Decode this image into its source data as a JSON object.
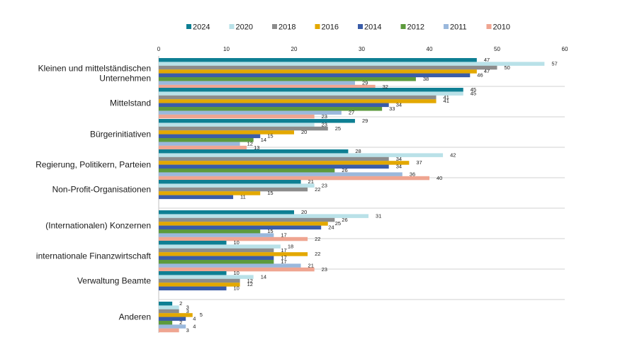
{
  "chart_data": {
    "type": "bar",
    "orientation": "horizontal",
    "title": "",
    "xlabel": "",
    "ylabel": "",
    "xlim": [
      0,
      60
    ],
    "ticks": [
      "0",
      "10",
      "20",
      "30",
      "40",
      "50",
      "60"
    ],
    "legend_position": "top",
    "categories": [
      [
        "Kleinen und mittelständischen",
        "Unternehmen"
      ],
      [
        "Mittelstand"
      ],
      [
        "Bürgerinitiativen"
      ],
      [
        "Regierung, Politikern, Parteien"
      ],
      [
        "Non-Profit-Organisationen"
      ],
      [
        "(Internationalen) Konzernen"
      ],
      [
        "internationale Finanzwirtschaft"
      ],
      [
        "Verwaltung Beamte"
      ],
      [
        "Anderen"
      ]
    ],
    "series": [
      {
        "name": "2024",
        "color": "#0e7f93",
        "values": [
          47,
          45,
          29,
          28,
          21,
          20,
          10,
          10,
          2
        ]
      },
      {
        "name": "2020",
        "color": "#b9e1e8",
        "values": [
          57,
          45,
          23,
          42,
          23,
          31,
          18,
          14,
          3
        ]
      },
      {
        "name": "2018",
        "color": "#8c8c8c",
        "values": [
          50,
          41,
          25,
          34,
          22,
          26,
          17,
          12,
          3
        ]
      },
      {
        "name": "2016",
        "color": "#e3a800",
        "values": [
          47,
          41,
          20,
          37,
          15,
          25,
          22,
          12,
          5
        ]
      },
      {
        "name": "2014",
        "color": "#3a5ca8",
        "values": [
          46,
          34,
          15,
          34,
          11,
          24,
          17,
          10,
          4
        ]
      },
      {
        "name": "2012",
        "color": "#5c9a3c",
        "values": [
          38,
          33,
          14,
          26,
          null,
          15,
          17,
          null,
          2
        ]
      },
      {
        "name": "2011",
        "color": "#9ab8dc",
        "values": [
          29,
          27,
          12,
          36,
          null,
          17,
          21,
          null,
          4
        ]
      },
      {
        "name": "2010",
        "color": "#efa591",
        "values": [
          32,
          23,
          13,
          40,
          null,
          22,
          23,
          null,
          3
        ]
      }
    ]
  }
}
